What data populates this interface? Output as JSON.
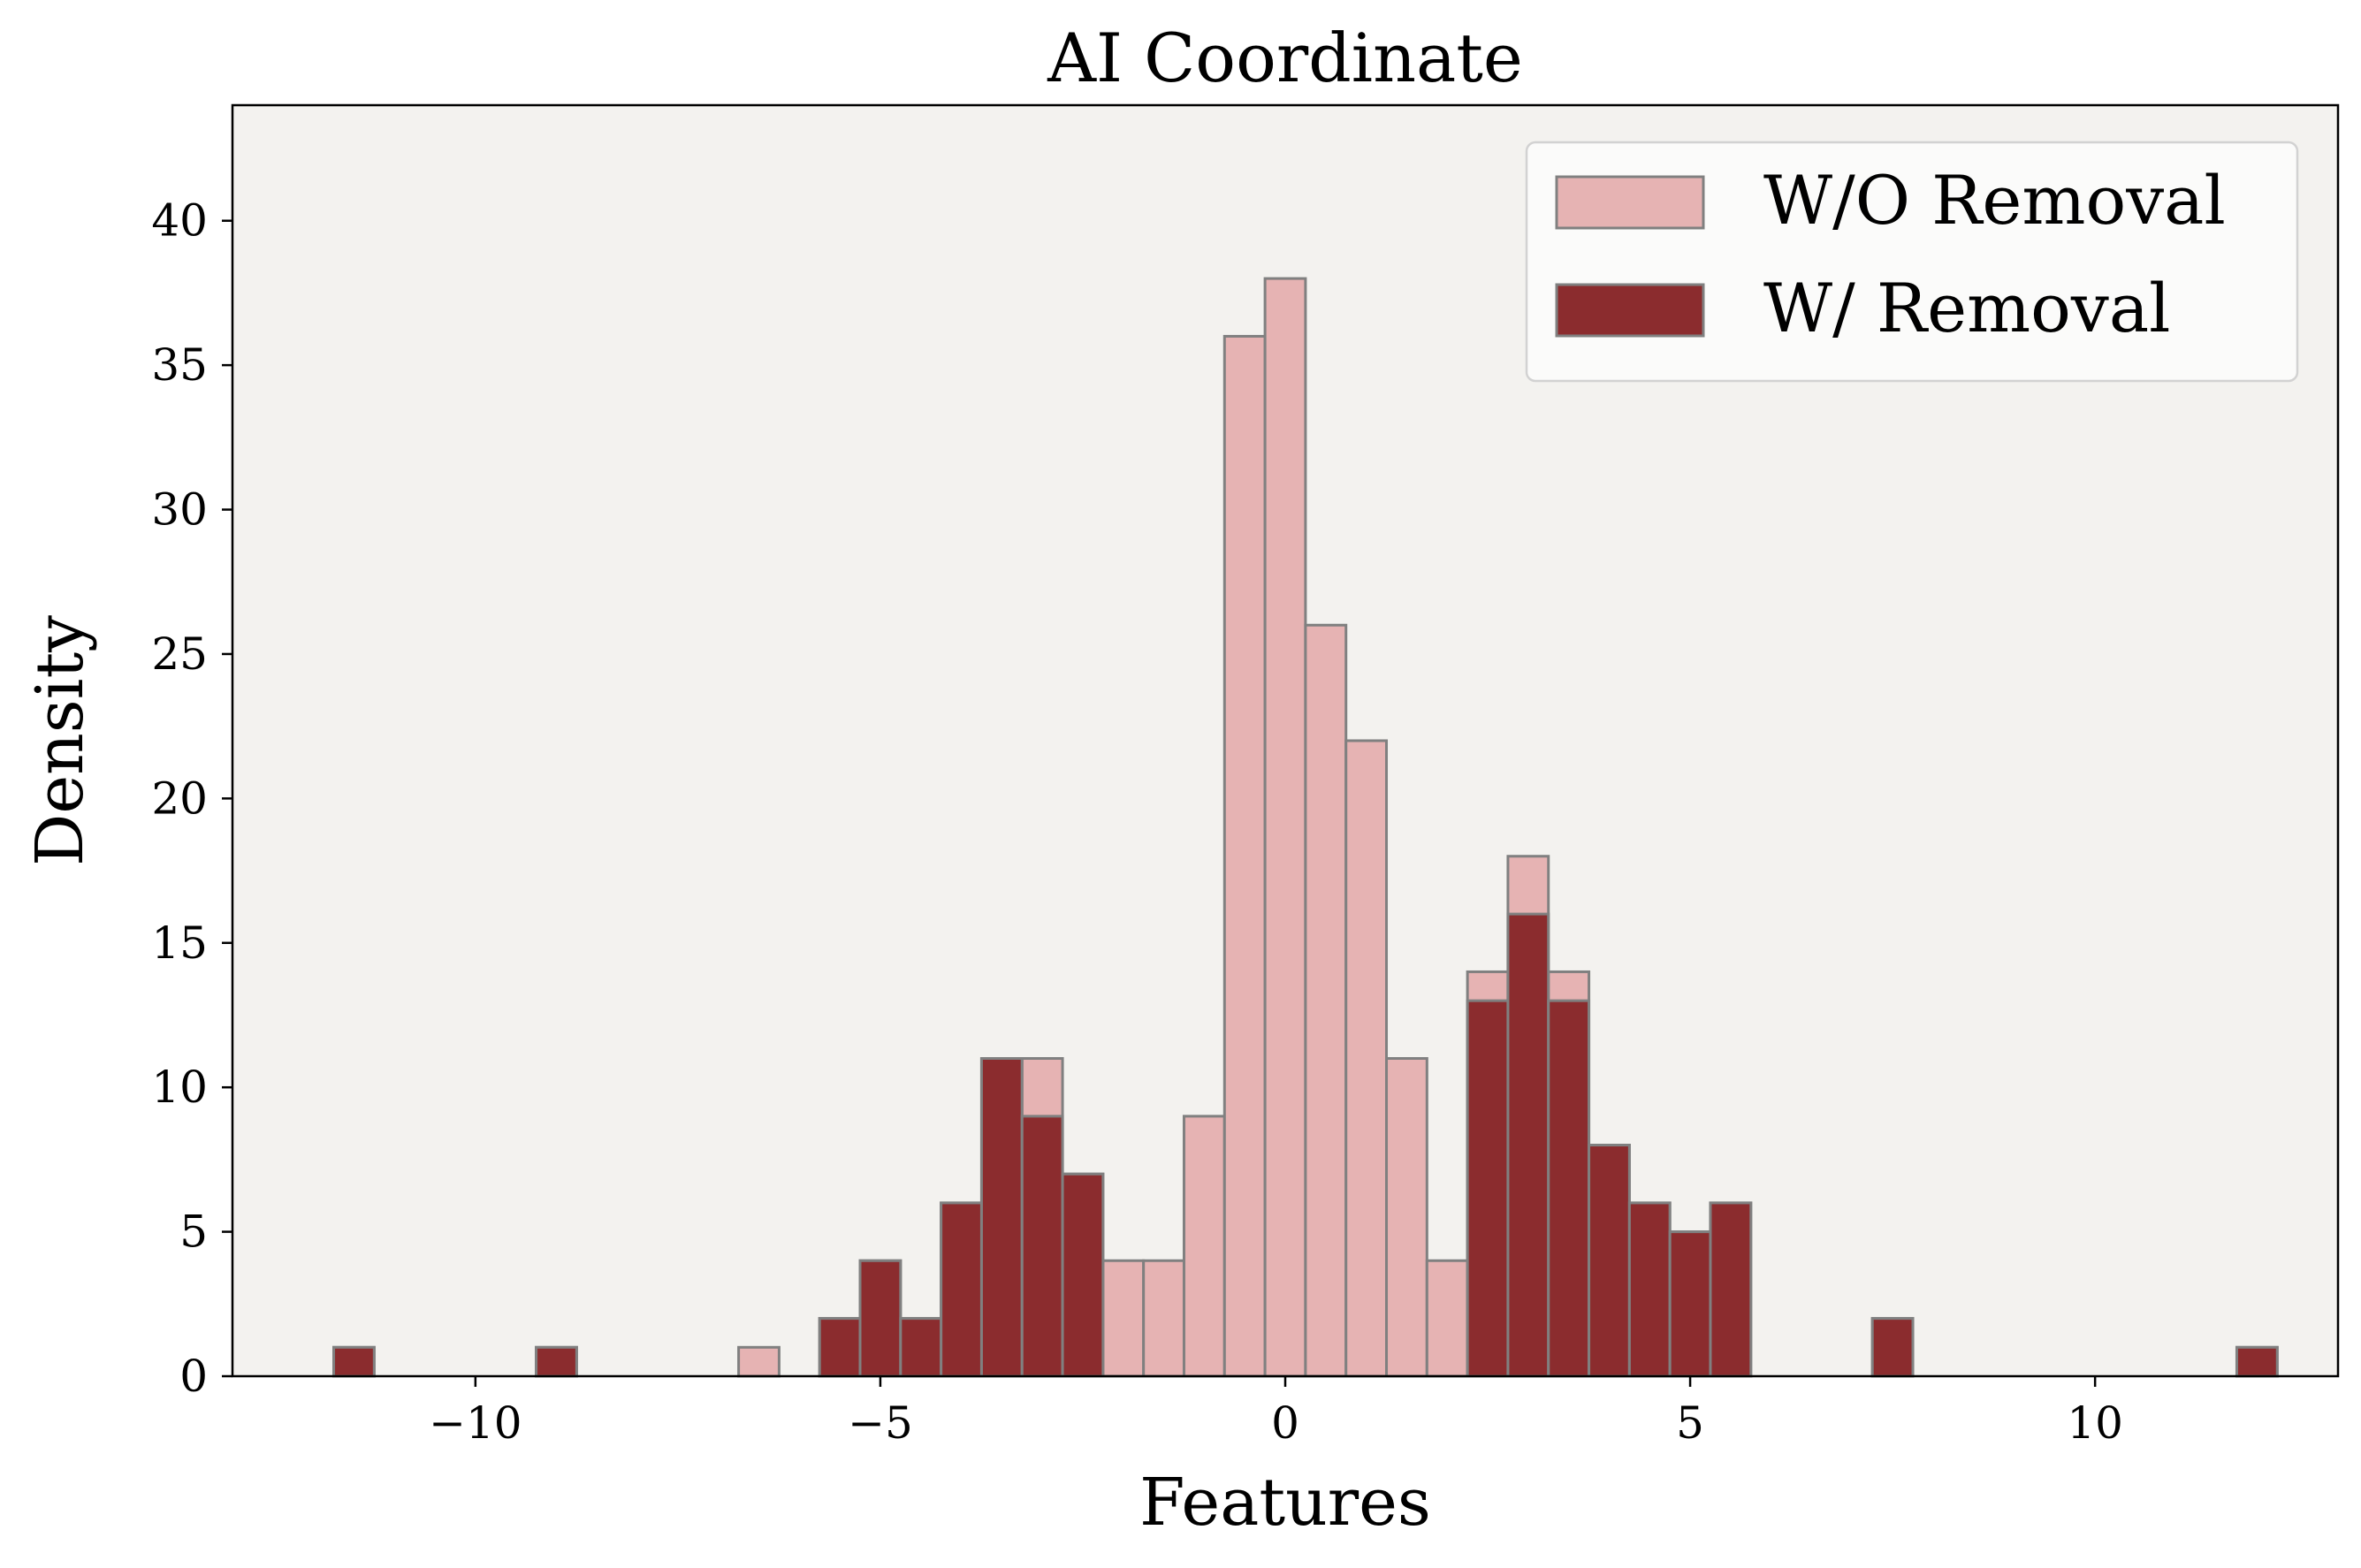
{
  "chart_data": {
    "type": "bar",
    "title": "AI Coordinate",
    "xlabel": "Features",
    "ylabel": "Density",
    "xlim": [
      -13.0,
      13.0
    ],
    "ylim": [
      0,
      44
    ],
    "x_ticks": [
      -10,
      -5,
      0,
      5,
      10
    ],
    "x_tick_labels": [
      "−10",
      "−5",
      "0",
      "5",
      "10"
    ],
    "y_ticks": [
      0,
      5,
      10,
      15,
      20,
      25,
      30,
      35,
      40
    ],
    "y_tick_labels": [
      "0",
      "5",
      "10",
      "15",
      "20",
      "25",
      "30",
      "35",
      "40"
    ],
    "bin_width": 0.5,
    "bin_left_edges": [
      -11.75,
      -9.25,
      -6.75,
      -5.75,
      -5.25,
      -4.75,
      -4.25,
      -3.75,
      -3.25,
      -2.75,
      -2.25,
      -1.75,
      -1.25,
      -0.75,
      -0.25,
      0.25,
      0.75,
      1.25,
      1.75,
      2.25,
      2.75,
      3.25,
      3.75,
      4.25,
      4.75,
      5.25,
      7.25,
      11.75
    ],
    "series": [
      {
        "name": "W/O Removal",
        "color": "#e6b3b3",
        "values": [
          1,
          1,
          1,
          2,
          4,
          2,
          6,
          11,
          11,
          7,
          4,
          4,
          9,
          36,
          38,
          26,
          22,
          11,
          4,
          14,
          18,
          14,
          8,
          6,
          5,
          6,
          2,
          1
        ]
      },
      {
        "name": "W/ Removal",
        "color": "#8b2c2e",
        "values": [
          1,
          1,
          0,
          2,
          4,
          2,
          6,
          11,
          9,
          7,
          0,
          0,
          0,
          0,
          0,
          0,
          0,
          0,
          0,
          13,
          16,
          13,
          8,
          6,
          5,
          6,
          2,
          1
        ]
      }
    ],
    "grid": false,
    "legend_position": "top-right",
    "plot_background": "#f3f2ef",
    "bar_edge_color": "#808080"
  }
}
